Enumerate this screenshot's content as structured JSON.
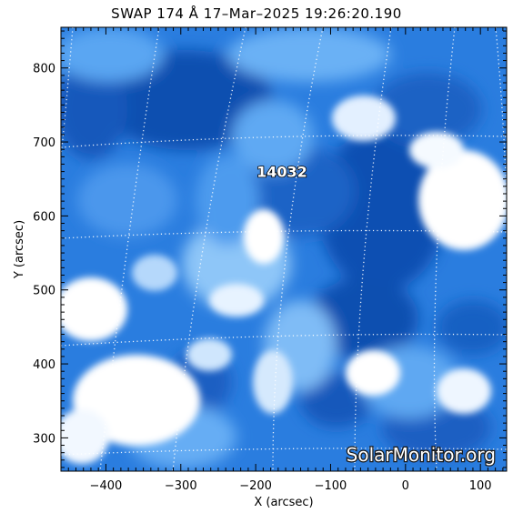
{
  "title": "SWAP 174 Å 17–Mar–2025 19:26:20.190",
  "axes": {
    "xlabel": "X (arcsec)",
    "ylabel": "Y (arcsec)",
    "xlim": [
      -460,
      135
    ],
    "ylim": [
      255,
      855
    ],
    "x_ticks": [
      -400,
      -300,
      -200,
      -100,
      0,
      100
    ],
    "y_ticks": [
      300,
      400,
      500,
      600,
      700,
      800
    ],
    "x_tick_labels": [
      "−400",
      "−300",
      "−200",
      "−100",
      "0",
      "100"
    ],
    "y_tick_labels": [
      "300",
      "400",
      "500",
      "600",
      "700",
      "800"
    ]
  },
  "active_region": {
    "number": "14032",
    "x": -165,
    "y": 660
  },
  "watermark": "SolarMonitor.org",
  "colors": {
    "dark": "#0a47a8",
    "mid": "#2e86e8",
    "light": "#b9dcfb",
    "bright": "#ffffff"
  }
}
